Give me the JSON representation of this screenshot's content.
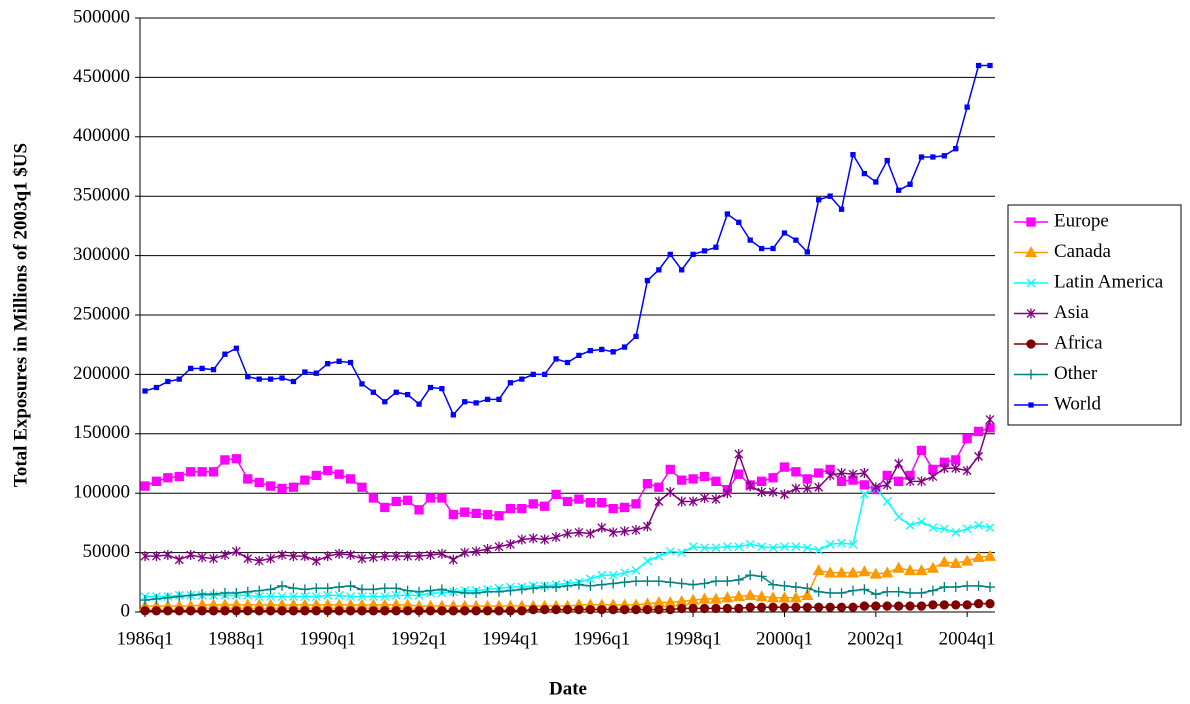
{
  "chart_data": {
    "type": "line",
    "y_label": "Total Exposures in Millions of 2003q1 $US",
    "x_label": "Date",
    "categories": [
      "1986q1",
      null,
      null,
      null,
      null,
      null,
      null,
      null,
      "1988q1",
      null,
      null,
      null,
      null,
      null,
      null,
      null,
      "1990q1",
      null,
      null,
      null,
      null,
      null,
      null,
      null,
      "1992q1",
      null,
      null,
      null,
      null,
      null,
      null,
      null,
      "1994q1",
      null,
      null,
      null,
      null,
      null,
      null,
      null,
      "1996q1",
      null,
      null,
      null,
      null,
      null,
      null,
      null,
      "1998q1",
      null,
      null,
      null,
      null,
      null,
      null,
      null,
      "2000q1",
      null,
      null,
      null,
      null,
      null,
      null,
      null,
      "2002q1",
      null,
      null,
      null,
      null,
      null,
      null,
      null,
      "2004q1",
      null,
      null
    ],
    "ylim": [
      0,
      500000
    ],
    "yticks": [
      0,
      50000,
      100000,
      150000,
      200000,
      250000,
      300000,
      350000,
      400000,
      450000,
      500000
    ],
    "grid": true,
    "legend": "right",
    "series": [
      {
        "name": "Europe",
        "color": "#ff00ff",
        "marker": "square",
        "values": [
          106000,
          110000,
          113000,
          114000,
          118000,
          118000,
          118000,
          128000,
          129000,
          112000,
          109000,
          106000,
          104000,
          105000,
          111000,
          115000,
          119000,
          116000,
          112000,
          105000,
          96000,
          88000,
          93000,
          94000,
          86000,
          96000,
          96000,
          82000,
          84000,
          83000,
          82000,
          81000,
          87000,
          87000,
          91000,
          89000,
          99000,
          93000,
          95000,
          92000,
          92000,
          87000,
          88000,
          91000,
          108000,
          105000,
          120000,
          111000,
          112000,
          114000,
          110000,
          103000,
          116000,
          107000,
          110000,
          113000,
          122000,
          118000,
          112000,
          117000,
          120000,
          110000,
          111000,
          107000,
          103000,
          115000,
          110000,
          115000,
          136000,
          120000,
          126000,
          128000,
          146000,
          152000,
          155000
        ]
      },
      {
        "name": "Canada",
        "color": "#ff9900",
        "marker": "triangle",
        "values": [
          5000,
          5000,
          5000,
          5000,
          5000,
          6000,
          6000,
          6000,
          6000,
          6000,
          6000,
          6000,
          6000,
          6000,
          6000,
          6000,
          6000,
          6000,
          6000,
          6000,
          6000,
          6000,
          6000,
          6000,
          5000,
          5000,
          5000,
          5000,
          5000,
          5000,
          5000,
          5000,
          5000,
          5000,
          5000,
          5000,
          5000,
          5000,
          6000,
          6000,
          6000,
          6000,
          6000,
          6000,
          7000,
          8000,
          8000,
          9000,
          10000,
          11000,
          11000,
          12000,
          13000,
          14000,
          13000,
          12000,
          12000,
          12000,
          14000,
          35000,
          33000,
          33000,
          33000,
          34000,
          32000,
          33000,
          37000,
          35000,
          35000,
          37000,
          42000,
          41000,
          43000,
          46000,
          47000
        ]
      },
      {
        "name": "Latin America",
        "color": "#00ffff",
        "marker": "x",
        "values": [
          13000,
          13000,
          13000,
          14000,
          14000,
          14000,
          14000,
          14000,
          14000,
          14000,
          13000,
          13000,
          13000,
          13000,
          13000,
          13000,
          14000,
          14000,
          13000,
          13000,
          13000,
          13000,
          14000,
          14000,
          14000,
          16000,
          16000,
          17000,
          18000,
          18000,
          19000,
          20000,
          21000,
          21000,
          22000,
          22000,
          23000,
          24000,
          25000,
          28000,
          31000,
          31000,
          33000,
          35000,
          43000,
          47000,
          51000,
          50000,
          55000,
          54000,
          54000,
          55000,
          55000,
          57000,
          55000,
          54000,
          55000,
          55000,
          54000,
          52000,
          57000,
          58000,
          57000,
          99000,
          104000,
          93000,
          80000,
          73000,
          76000,
          71000,
          70000,
          67000,
          70000,
          73000,
          71000
        ]
      },
      {
        "name": "Asia",
        "color": "#800080",
        "marker": "star",
        "values": [
          47000,
          47000,
          48000,
          44000,
          48000,
          46000,
          45000,
          48000,
          51000,
          45000,
          43000,
          45000,
          48000,
          47000,
          47000,
          43000,
          47000,
          49000,
          48000,
          45000,
          46000,
          47000,
          47000,
          47000,
          47000,
          48000,
          49000,
          44000,
          50000,
          51000,
          53000,
          55000,
          57000,
          61000,
          62000,
          61000,
          63000,
          66000,
          67000,
          66000,
          71000,
          67000,
          68000,
          69000,
          72000,
          93000,
          101000,
          93000,
          93000,
          96000,
          95000,
          100000,
          133000,
          106000,
          101000,
          101000,
          99000,
          104000,
          104000,
          105000,
          115000,
          117000,
          116000,
          117000,
          105000,
          107000,
          125000,
          110000,
          110000,
          114000,
          121000,
          121000,
          119000,
          131000,
          162000
        ]
      },
      {
        "name": "Africa",
        "color": "#800000",
        "marker": "circle",
        "values": [
          1000,
          1000,
          1000,
          1000,
          1000,
          1000,
          1000,
          1000,
          1000,
          1000,
          1000,
          1000,
          1000,
          1000,
          1000,
          1000,
          1000,
          1000,
          1000,
          1000,
          1000,
          1000,
          1000,
          1000,
          1000,
          1000,
          1000,
          1000,
          1000,
          1000,
          1000,
          1000,
          1000,
          1000,
          2000,
          2000,
          2000,
          2000,
          2000,
          2000,
          2000,
          2000,
          2000,
          2000,
          2000,
          2000,
          2000,
          3000,
          3000,
          3000,
          3000,
          3000,
          3000,
          4000,
          4000,
          4000,
          4000,
          4000,
          4000,
          4000,
          4000,
          4000,
          4000,
          5000,
          5000,
          5000,
          5000,
          5000,
          5000,
          6000,
          6000,
          6000,
          6000,
          7000,
          7000
        ]
      },
      {
        "name": "Other",
        "color": "#008080",
        "marker": "plus",
        "values": [
          10000,
          11000,
          12000,
          13000,
          14000,
          15000,
          15000,
          16000,
          16000,
          17000,
          18000,
          19000,
          22000,
          20000,
          19000,
          20000,
          20000,
          21000,
          22000,
          19000,
          19000,
          20000,
          20000,
          18000,
          17000,
          18000,
          19000,
          17000,
          16000,
          16000,
          17000,
          17000,
          18000,
          19000,
          20000,
          21000,
          21000,
          22000,
          23000,
          22000,
          23000,
          24000,
          25000,
          26000,
          26000,
          26000,
          25000,
          24000,
          23000,
          24000,
          26000,
          26000,
          27000,
          31000,
          30000,
          23000,
          22000,
          21000,
          20000,
          17000,
          16000,
          16000,
          18000,
          19000,
          15000,
          17000,
          17000,
          16000,
          16000,
          18000,
          21000,
          21000,
          22000,
          22000,
          21000
        ]
      },
      {
        "name": "World",
        "color": "#0000ff",
        "marker": "dot",
        "values": [
          186000,
          189000,
          194000,
          196000,
          205000,
          205000,
          204000,
          217000,
          222000,
          198000,
          196000,
          196000,
          197000,
          194000,
          202000,
          201000,
          209000,
          211000,
          210000,
          192000,
          185000,
          177000,
          185000,
          183000,
          175000,
          189000,
          188000,
          166000,
          177000,
          176000,
          179000,
          179000,
          193000,
          196000,
          200000,
          200000,
          213000,
          210000,
          216000,
          220000,
          221000,
          219000,
          223000,
          232000,
          279000,
          288000,
          301000,
          288000,
          301000,
          304000,
          307000,
          335000,
          328000,
          313000,
          306000,
          306000,
          319000,
          313000,
          303000,
          347000,
          350000,
          339000,
          385000,
          369000,
          362000,
          380000,
          355000,
          360000,
          383000,
          383000,
          384000,
          390000,
          425000,
          460000,
          460000
        ]
      }
    ]
  }
}
